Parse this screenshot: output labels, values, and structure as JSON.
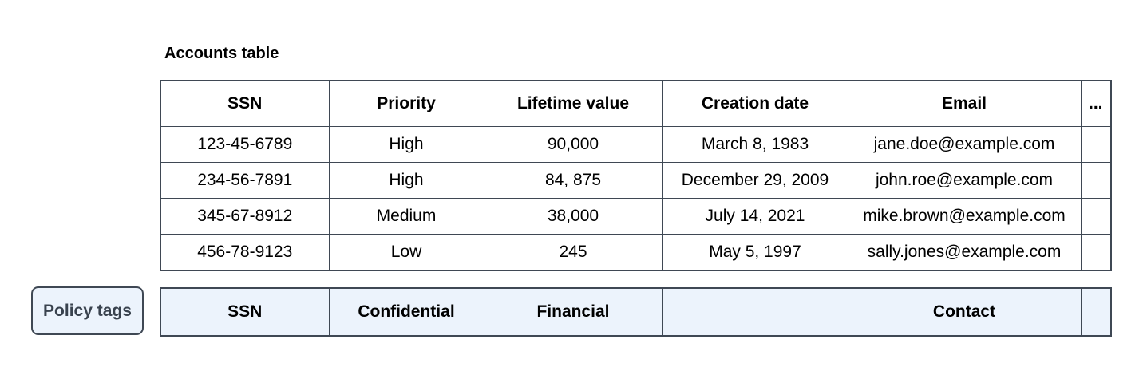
{
  "title": "Accounts table",
  "table": {
    "headers": [
      "SSN",
      "Priority",
      "Lifetime value",
      "Creation date",
      "Email",
      "..."
    ],
    "rows": [
      [
        "123-45-6789",
        "High",
        "90,000",
        "March 8, 1983",
        "jane.doe@example.com",
        ""
      ],
      [
        "234-56-7891",
        "High",
        "84, 875",
        "December 29, 2009",
        "john.roe@example.com",
        ""
      ],
      [
        "345-67-8912",
        "Medium",
        "38,000",
        "July 14, 2021",
        "mike.brown@example.com",
        ""
      ],
      [
        "456-78-9123",
        "Low",
        "245",
        "May 5, 1997",
        "sally.jones@example.com",
        ""
      ]
    ]
  },
  "policy": {
    "button_label": "Policy tags",
    "tags": [
      "SSN",
      "Confidential",
      "Financial",
      "",
      "Contact",
      ""
    ]
  },
  "colors": {
    "border": "#3f4854",
    "tag_fill": "#ecf3fc",
    "button_text": "#39424e"
  }
}
